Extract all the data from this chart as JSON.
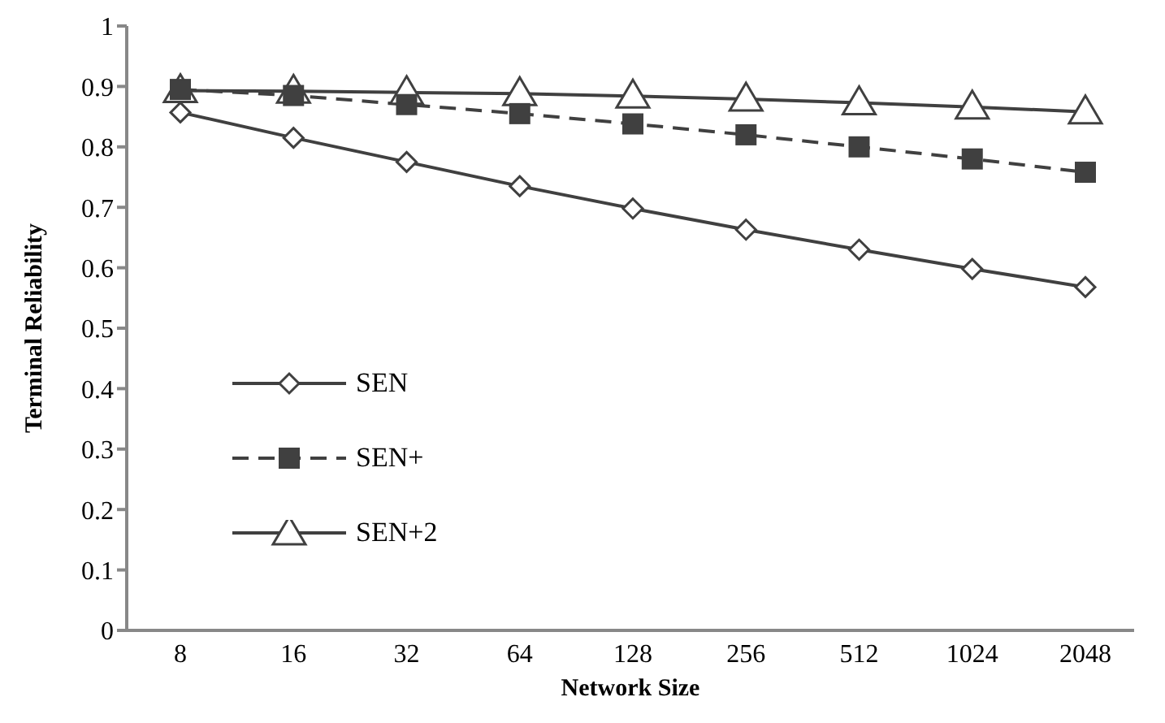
{
  "chart_data": {
    "type": "line",
    "xlabel": "Network Size",
    "ylabel": "Terminal Reliability",
    "categories": [
      "8",
      "16",
      "32",
      "64",
      "128",
      "256",
      "512",
      "1024",
      "2048"
    ],
    "series": [
      {
        "name": "SEN",
        "color": "#404040",
        "marker": "diamond",
        "line_style": "solid",
        "values": [
          0.857,
          0.815,
          0.775,
          0.735,
          0.698,
          0.663,
          0.63,
          0.598,
          0.568
        ]
      },
      {
        "name": "SEN+",
        "color": "#404040",
        "marker": "square",
        "line_style": "dashed",
        "values": [
          0.895,
          0.885,
          0.87,
          0.855,
          0.838,
          0.82,
          0.8,
          0.78,
          0.758
        ]
      },
      {
        "name": "SEN+2",
        "color": "#404040",
        "marker": "triangle",
        "line_style": "solid",
        "values": [
          0.893,
          0.892,
          0.89,
          0.888,
          0.884,
          0.879,
          0.873,
          0.866,
          0.858
        ]
      }
    ],
    "ylim": [
      0,
      1
    ],
    "yticks": [
      0,
      0.1,
      0.2,
      0.3,
      0.4,
      0.5,
      0.6,
      0.7,
      0.8,
      0.9,
      1
    ],
    "grid": false,
    "legend": "bottom left"
  }
}
